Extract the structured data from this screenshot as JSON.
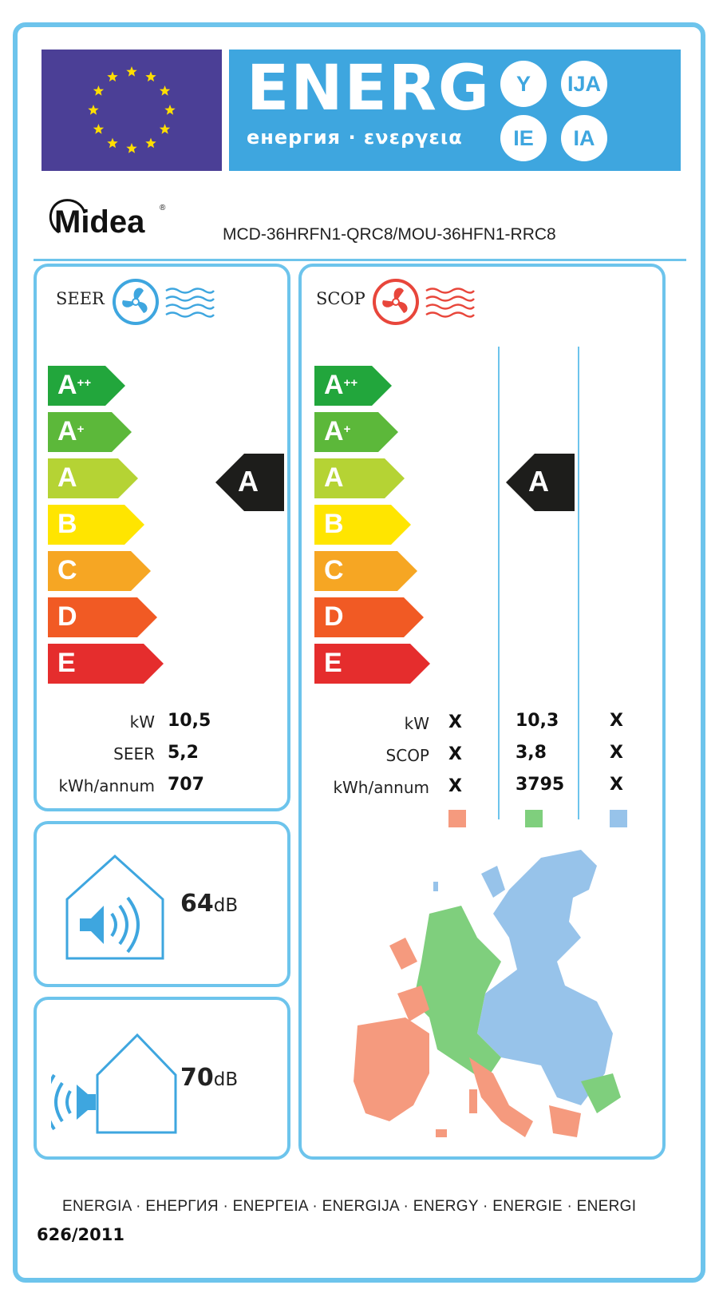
{
  "header": {
    "energy_word": "ENERG",
    "energy_subtitle": "енергия · ενεργεια",
    "suffixes": [
      "Y",
      "IJA",
      "IE",
      "IA"
    ],
    "flag_colors": {
      "background": "#4b3f96",
      "stars": "#ffde00"
    },
    "banner_color": "#3ea6df"
  },
  "brand": {
    "logo_text": "Midea",
    "model": "MCD-36HRFN1-QRC8/MOU-36HFN1-RRC8"
  },
  "seer_panel": {
    "title": "SEER",
    "icon": "fan-cooling-icon",
    "classes": [
      "A++",
      "A+",
      "A",
      "B",
      "C",
      "D",
      "E"
    ],
    "rating": "A",
    "rows": [
      {
        "label": "kW",
        "value": "10,5"
      },
      {
        "label": "SEER",
        "value": "5,2"
      },
      {
        "label": "kWh/annum",
        "value": "707"
      }
    ]
  },
  "scop_panel": {
    "title": "SCOP",
    "icon": "fan-heating-icon",
    "classes": [
      "A++",
      "A+",
      "A",
      "B",
      "C",
      "D",
      "E"
    ],
    "rating": "A",
    "rows": [
      {
        "label": "kW",
        "warm": "X",
        "average": "10,3",
        "cold": "X"
      },
      {
        "label": "SCOP",
        "warm": "X",
        "average": "3,8",
        "cold": "X"
      },
      {
        "label": "kWh/annum",
        "warm": "X",
        "average": "3795",
        "cold": "X"
      }
    ],
    "zone_colors": {
      "warm": "#f59a7e",
      "average": "#7fcf7d",
      "cold": "#97c3ea"
    },
    "map_icon": "europe-climate-zones-map"
  },
  "noise": {
    "indoor": {
      "value": "64",
      "unit": "dB",
      "icon": "indoor-sound-icon"
    },
    "outdoor": {
      "value": "70",
      "unit": "dB",
      "icon": "outdoor-sound-icon"
    }
  },
  "footer": {
    "languages": "ENERGIA · ЕНЕРГИЯ · ΕΝΕΡΓΕΙΑ · ENERGIJA · ENERGY · ENERGIE · ENERGI",
    "regulation": "626/2011"
  },
  "class_colors": [
    "#22a63c",
    "#5cb83a",
    "#b5d334",
    "#ffe500",
    "#f6a623",
    "#f15a24",
    "#e52d2d"
  ],
  "marker_color": "#1d1d1b"
}
